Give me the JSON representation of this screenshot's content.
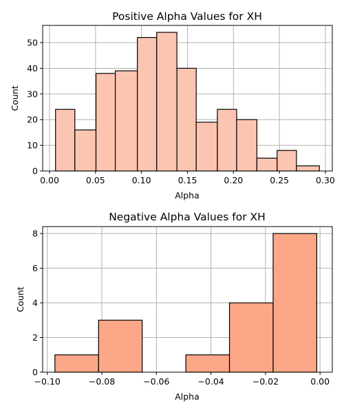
{
  "chart_data": [
    {
      "type": "bar",
      "title": "Positive Alpha Values for XH",
      "xlabel": "Alpha",
      "ylabel": "Count",
      "bar_color": "#fcc5b1",
      "bin_edges": [
        0.0065,
        0.0275,
        0.0505,
        0.0715,
        0.0955,
        0.1165,
        0.1385,
        0.1595,
        0.1825,
        0.2035,
        0.2255,
        0.2475,
        0.2685,
        0.2935
      ],
      "values": [
        24,
        16,
        38,
        39,
        52,
        54,
        40,
        19,
        24,
        20,
        5,
        8,
        2
      ],
      "xlim": [
        -0.0075,
        0.3075
      ],
      "ylim": [
        0,
        56.7
      ],
      "xticks": [
        0.0,
        0.05,
        0.1,
        0.15,
        0.2,
        0.25,
        0.3
      ],
      "xtick_labels": [
        "0.00",
        "0.05",
        "0.10",
        "0.15",
        "0.20",
        "0.25",
        "0.30"
      ],
      "yticks": [
        0,
        10,
        20,
        30,
        40,
        50
      ],
      "ytick_labels": [
        "0",
        "10",
        "20",
        "30",
        "40",
        "50"
      ],
      "grid": true
    },
    {
      "type": "bar",
      "title": "Negative Alpha Values for XH",
      "xlabel": "Alpha",
      "ylabel": "Count",
      "bar_color": "#fca787",
      "bin_edges": [
        -0.0972,
        -0.0812,
        -0.0652,
        -0.0492,
        -0.0332,
        -0.0172,
        -0.0012
      ],
      "values": [
        1,
        3,
        0,
        1,
        4,
        8
      ],
      "xlim": [
        -0.1017,
        0.0045
      ],
      "ylim": [
        0,
        8.4
      ],
      "xticks": [
        -0.1,
        -0.08,
        -0.06,
        -0.04,
        -0.02,
        0.0
      ],
      "xtick_labels": [
        "−0.10",
        "−0.08",
        "−0.06",
        "−0.04",
        "−0.02",
        "0.00"
      ],
      "yticks": [
        0,
        2,
        4,
        6,
        8
      ],
      "ytick_labels": [
        "0",
        "2",
        "4",
        "6",
        "8"
      ],
      "grid": true
    }
  ]
}
